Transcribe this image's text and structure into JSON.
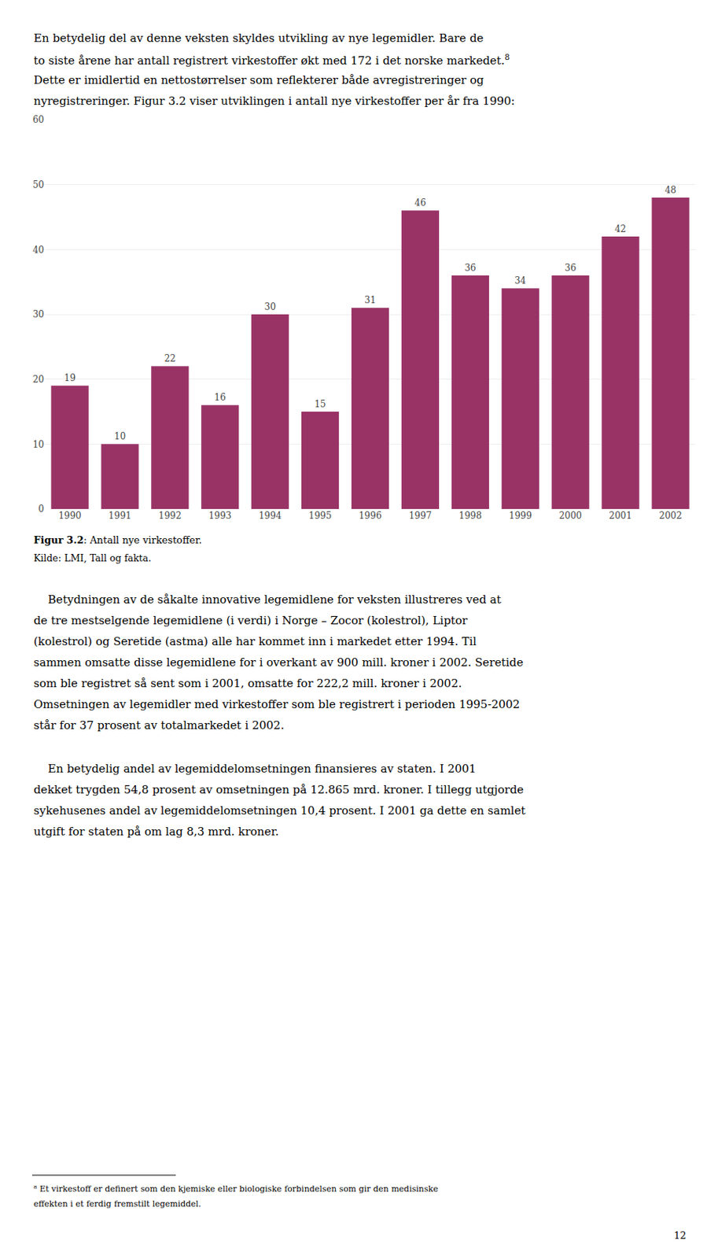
{
  "chart_data": {
    "type": "bar",
    "categories": [
      "1990",
      "1991",
      "1992",
      "1993",
      "1994",
      "1995",
      "1996",
      "1997",
      "1998",
      "1999",
      "2000",
      "2001",
      "2002"
    ],
    "values": [
      19,
      10,
      22,
      16,
      30,
      15,
      31,
      46,
      36,
      34,
      36,
      42,
      48
    ],
    "color": "#993366",
    "ylim": [
      0,
      60
    ],
    "yticks": [
      0,
      10,
      20,
      30,
      40,
      50,
      60
    ],
    "grid": true,
    "data_labels": true,
    "annotations": [
      "En betydelig del av denne veksten skyldes utvikling av nye legemidler. Bare de",
      "to siste årene har antall registrert virkestoffer økt med 172 i det norske markedet.",
      "8",
      "Dette er imidlertid en nettostørrelser som reflekterer både avregistreringer og",
      "nyregistreringer. Figur 3.2 viser utviklingen i antall nye virkestoffer per år fra 1990:",
      "Figur 3.2",
      ": Antall nye virkestoffer.",
      "Kilde: LMI, Tall og fakta.",
      "    Betydningen av de såkalte innovative legemidlene for veksten illustreres ved at",
      "de tre mestselgende legemidlene (i verdi) i Norge – Zocor (kolestrol), Liptor",
      "(kolestrol) og Seretide (astma) alle har kommet inn i markedet etter 1994. Til",
      "sammen omsatte disse legemidlene for i overkant av 900 mill. kroner i 2002. Seretide",
      "som ble registret så sent som i 2001, omsatte for 222,2 mill. kroner i 2002.",
      "Omsetningen av legemidler med virkestoffer som ble registrert i perioden 1995-2002",
      "står for 37 prosent av totalmarkedet i 2002.",
      "    En betydelig andel av legemiddelomsetningen finansieres av staten. I 2001",
      "dekket trygden 54,8 prosent av omsetningen på 12.865 mrd. kroner. I tillegg utgjorde",
      "sykehusenes andel av legemiddelomsetningen 10,4 prosent. I 2001 ga dette en samlet",
      "utgift for staten på om lag 8,3 mrd. kroner.",
      "⁸ Et virkestoff er definert som den kjemiske eller biologiske forbindelsen som gir den medisinske",
      "effekten i et ferdig fremstilt legemiddel.",
      "12"
    ]
  }
}
